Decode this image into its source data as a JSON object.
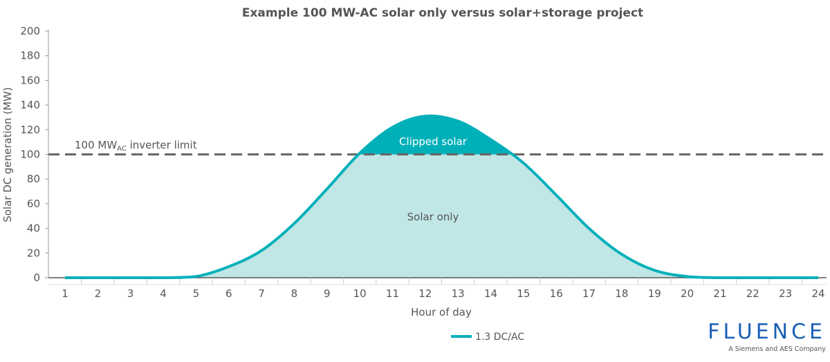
{
  "chart_data": {
    "type": "area",
    "title": "Example 100 MW-AC solar only versus solar+storage project",
    "xlabel": "Hour of day",
    "ylabel": "Solar DC generation (MW)",
    "ylim": [
      0,
      200
    ],
    "yticks": [
      0,
      20,
      40,
      60,
      80,
      100,
      120,
      140,
      160,
      180,
      200
    ],
    "x": [
      1,
      2,
      3,
      4,
      5,
      6,
      7,
      8,
      9,
      10,
      11,
      12,
      13,
      14,
      15,
      16,
      17,
      18,
      19,
      20,
      21,
      22,
      23,
      24
    ],
    "series": [
      {
        "name": "1.3 DC/AC",
        "color": "#00b0b9",
        "values": [
          0,
          0,
          0,
          0,
          1,
          9,
          22,
          44,
          72,
          101,
          122,
          131,
          127,
          112,
          93,
          67,
          40,
          19,
          6,
          1,
          0,
          0,
          0,
          0
        ]
      }
    ],
    "limit": {
      "value": 100,
      "label_main": "100 MW",
      "label_sub": "AC",
      "label_rest": " inverter limit",
      "color": "#666666"
    },
    "annotations": {
      "clipped": "Clipped solar",
      "solar_only": "Solar only"
    },
    "colors": {
      "clipped_fill": "#00b0b9",
      "solar_fill": "#c0e6e6"
    },
    "legend": {
      "position": "bottom"
    },
    "grid": false
  },
  "logo": {
    "brand": "FLUENCE",
    "tagline": "A Siemens and AES Company"
  }
}
